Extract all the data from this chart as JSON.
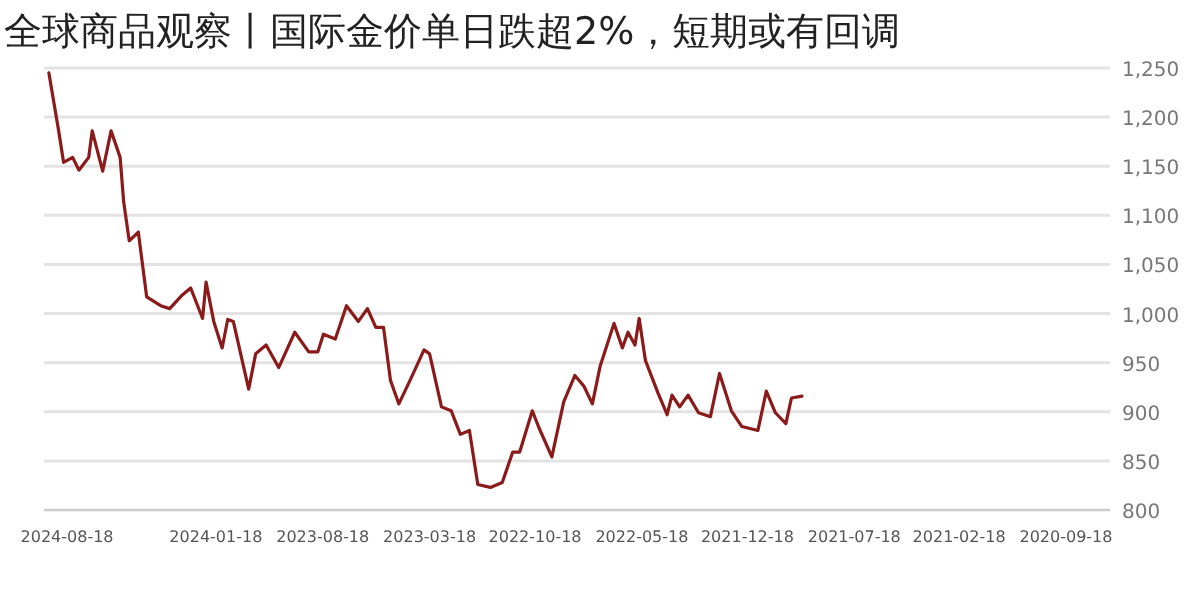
{
  "chart_data": {
    "type": "line",
    "title": "全球商品观察丨国际金价单日跌超2%，短期或有回调",
    "xlim": [
      "2024-09-20",
      "2020-07-17"
    ],
    "xticks": [
      "2024-08-18",
      "2024-01-18",
      "2023-08-18",
      "2023-03-18",
      "2022-10-18",
      "2022-05-18",
      "2021-12-18",
      "2021-07-18",
      "2021-02-18",
      "2020-09-18"
    ],
    "ylim": [
      800,
      1250
    ],
    "yticks": [
      {
        "value": 800,
        "label": "800"
      },
      {
        "value": 850,
        "label": "850"
      },
      {
        "value": 900,
        "label": "900"
      },
      {
        "value": 950,
        "label": "950"
      },
      {
        "value": 1000,
        "label": "1,000"
      },
      {
        "value": 1050,
        "label": "1,050"
      },
      {
        "value": 1100,
        "label": "1,100"
      },
      {
        "value": 1150,
        "label": "1,150"
      },
      {
        "value": 1200,
        "label": "1,200"
      },
      {
        "value": 1250,
        "label": "1,250"
      }
    ],
    "grid": "y",
    "series": [
      {
        "color": "#8b1a1a",
        "x": [
          "2024-09-13",
          "2024-08-30",
          "2024-08-23",
          "2024-08-10",
          "2024-08-01",
          "2024-07-18",
          "2024-07-13",
          "2024-06-28",
          "2024-06-16",
          "2024-06-03",
          "2024-05-29",
          "2024-05-21",
          "2024-05-08",
          "2024-04-26",
          "2024-04-06",
          "2024-03-24",
          "2024-03-06",
          "2024-02-23",
          "2024-02-06",
          "2024-02-01",
          "2024-01-21",
          "2024-01-09",
          "2024-01-01",
          "2023-12-24",
          "2023-12-02",
          "2023-11-22",
          "2023-11-07",
          "2023-10-20",
          "2023-09-27",
          "2023-09-07",
          "2023-08-25",
          "2023-08-17",
          "2023-07-31",
          "2023-07-15",
          "2023-06-28",
          "2023-06-15",
          "2023-06-03",
          "2023-05-23",
          "2023-05-13",
          "2023-05-01",
          "2023-04-13",
          "2023-03-26",
          "2023-03-18",
          "2023-03-01",
          "2023-02-15",
          "2023-02-02",
          "2023-01-20",
          "2023-01-08",
          "2022-12-21",
          "2022-12-04",
          "2022-11-19",
          "2022-11-09",
          "2022-10-22",
          "2022-10-12",
          "2022-09-24",
          "2022-09-07",
          "2022-08-22",
          "2022-08-09",
          "2022-07-28",
          "2022-07-17",
          "2022-06-27",
          "2022-06-15",
          "2022-06-07",
          "2022-05-28",
          "2022-05-22",
          "2022-05-13",
          "2022-04-25",
          "2022-04-12",
          "2022-04-05",
          "2022-03-25",
          "2022-03-13",
          "2022-02-26",
          "2022-02-09",
          "2022-01-27",
          "2022-01-10",
          "2021-12-26",
          "2021-12-03",
          "2021-11-21",
          "2021-11-08",
          "2021-10-24",
          "2021-10-16",
          "2021-10-01"
        ],
        "values": [
          1245,
          1186,
          1154,
          1159,
          1146,
          1159,
          1186,
          1145,
          1186,
          1159,
          1114,
          1074,
          1083,
          1017,
          1008,
          1005,
          1019,
          1026,
          995,
          1032,
          992,
          965,
          994,
          992,
          923,
          959,
          968,
          945,
          981,
          961,
          961,
          979,
          974,
          1008,
          992,
          1005,
          986,
          986,
          932,
          908,
          935,
          963,
          959,
          905,
          901,
          877,
          881,
          826,
          823,
          828,
          859,
          859,
          901,
          883,
          854,
          910,
          937,
          926,
          908,
          946,
          990,
          965,
          981,
          968,
          995,
          952,
          919,
          897,
          917,
          905,
          917,
          899,
          895,
          939,
          901,
          885,
          881,
          921,
          899,
          888,
          914,
          916
        ]
      }
    ]
  }
}
